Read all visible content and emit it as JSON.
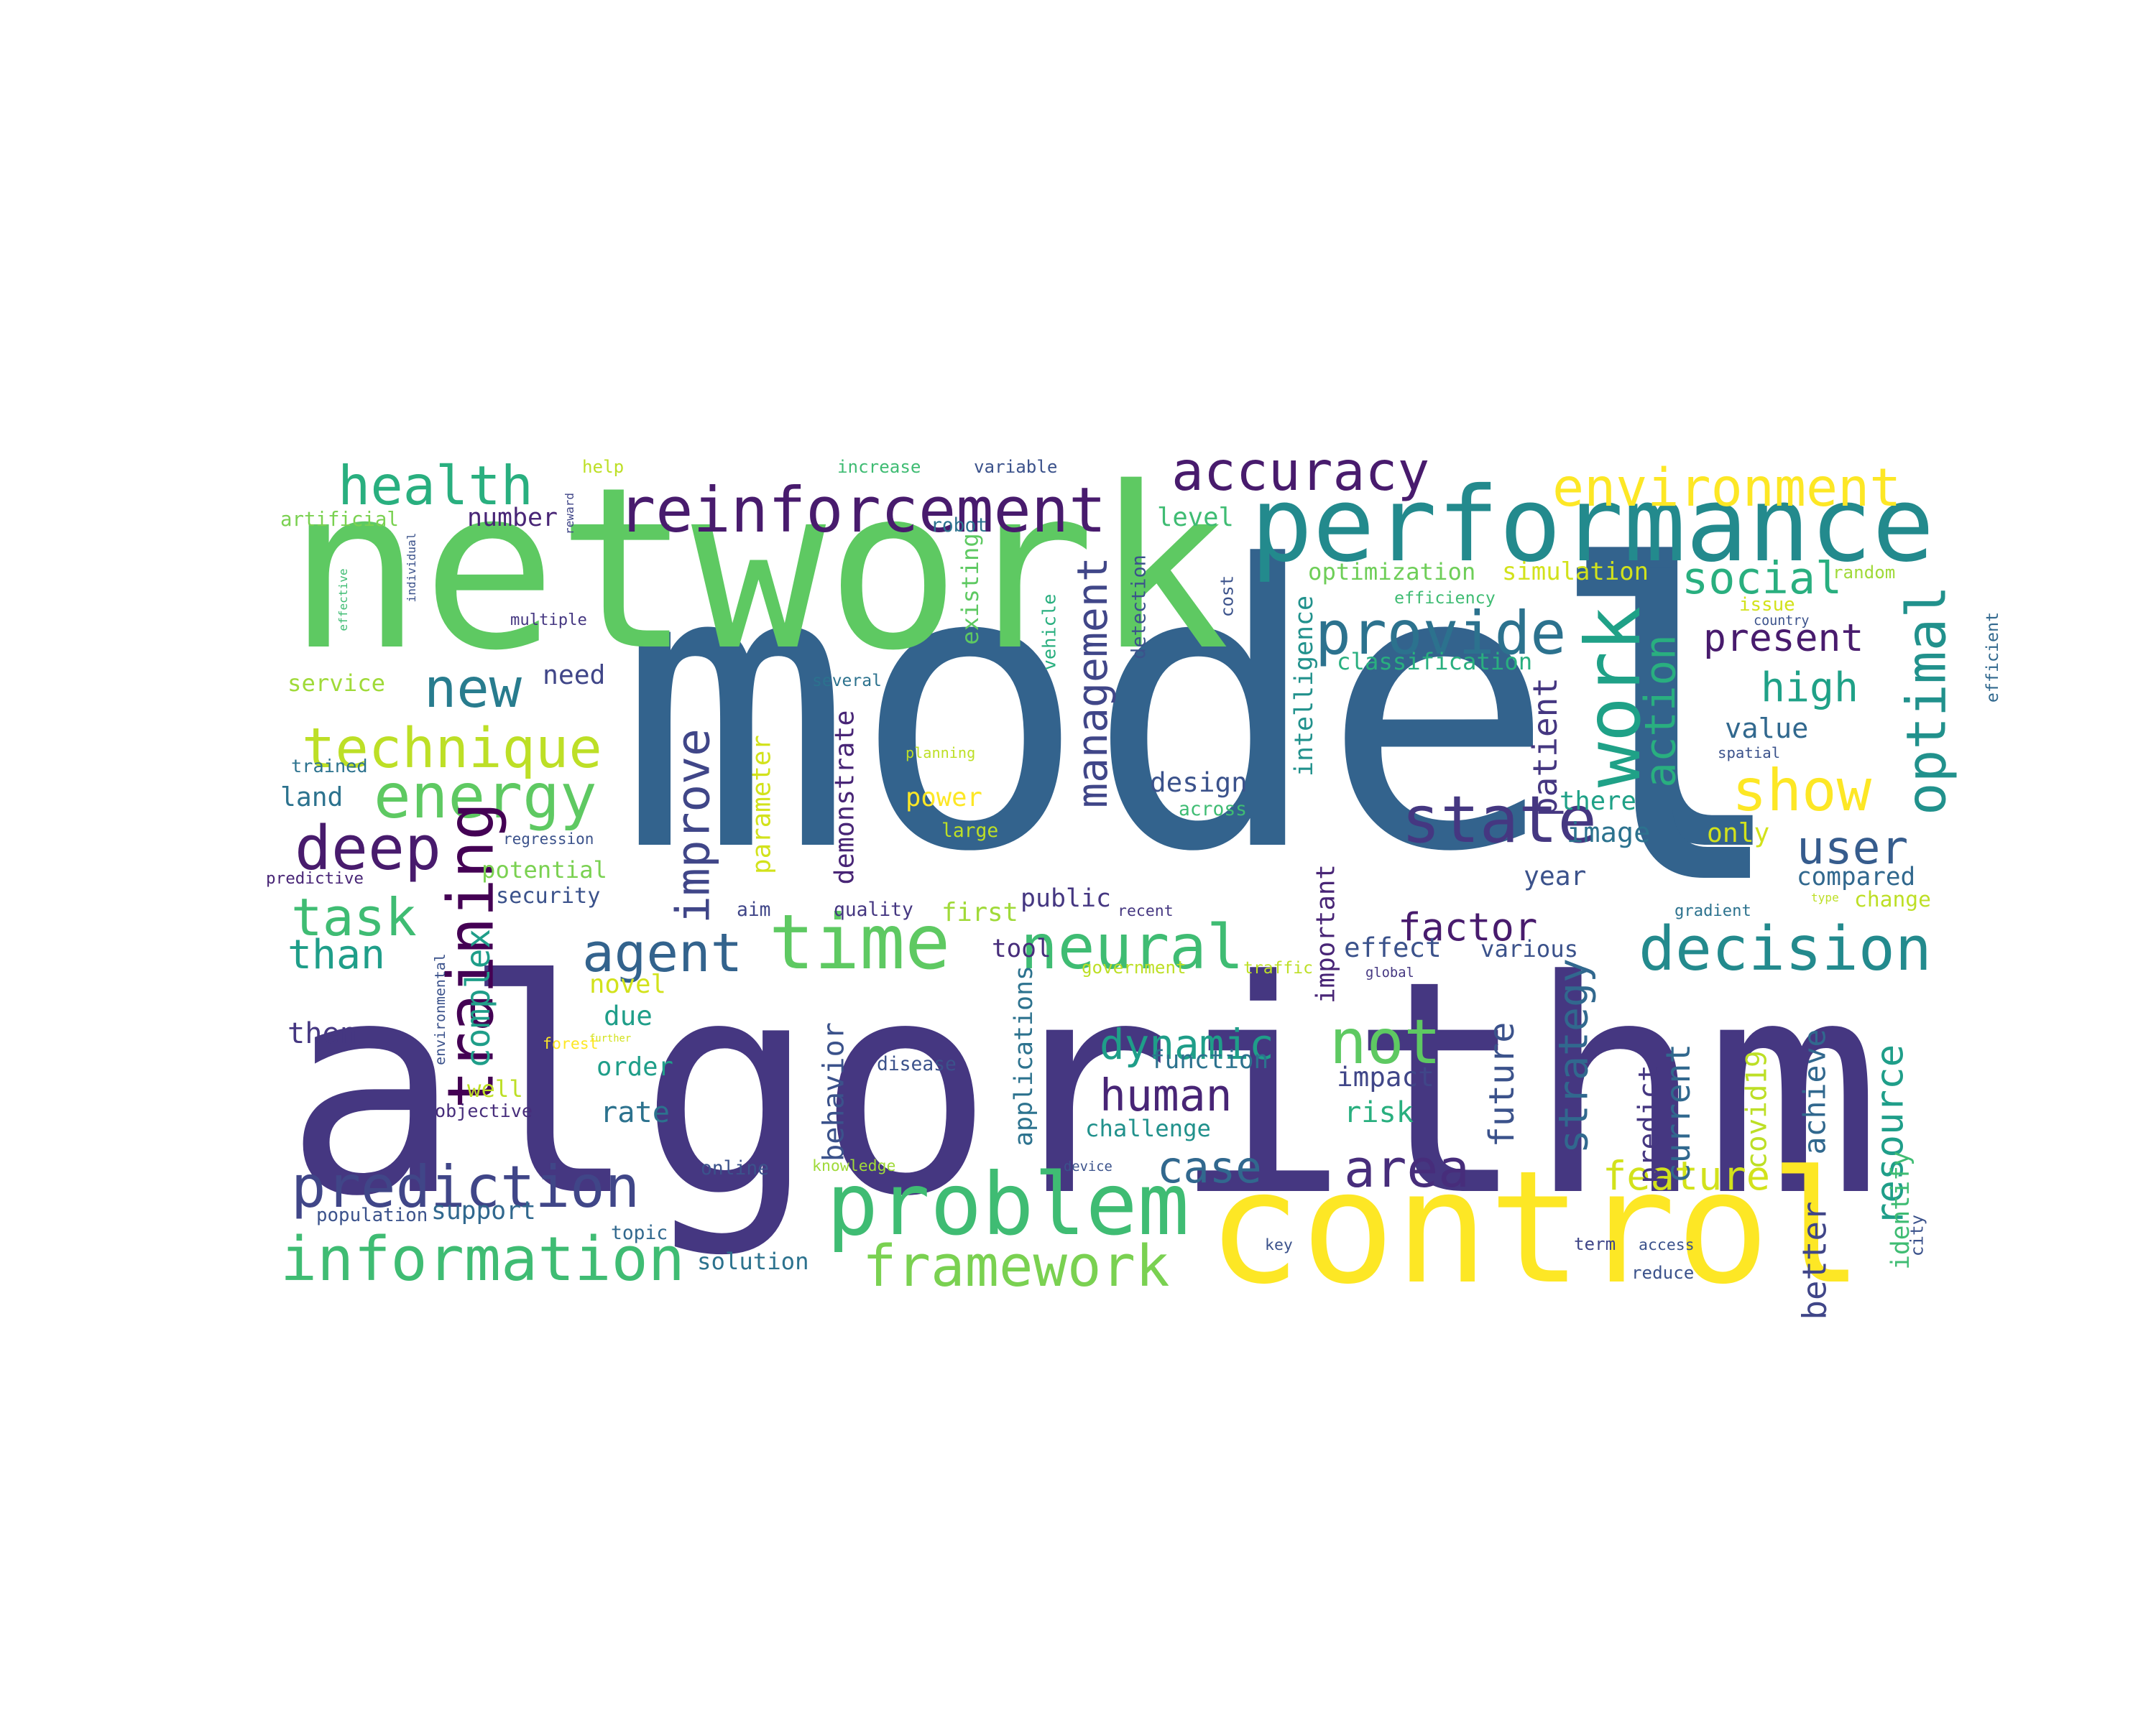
{
  "words": [
    {
      "text": "model",
      "color": "#33638d",
      "vertical": false
    },
    {
      "text": "algorithm",
      "color": "#453781",
      "vertical": false
    },
    {
      "text": "network",
      "color": "#5ec962",
      "vertical": false
    },
    {
      "text": "control",
      "color": "#fde725",
      "vertical": false
    },
    {
      "text": "l",
      "color": "#33638d",
      "vertical": false
    },
    {
      "text": "performance",
      "color": "#238a8d",
      "vertical": false
    },
    {
      "text": "problem",
      "color": "#3fbc73",
      "vertical": false
    },
    {
      "text": "reinforcement",
      "color": "#481b6d",
      "vertical": false
    },
    {
      "text": "information",
      "color": "#3fbc73",
      "vertical": false
    },
    {
      "text": "prediction",
      "color": "#404688",
      "vertical": false
    },
    {
      "text": "decision",
      "color": "#238a8d",
      "vertical": false
    },
    {
      "text": "framework",
      "color": "#7ad151",
      "vertical": false
    },
    {
      "text": "energy",
      "color": "#5ec962",
      "vertical": false
    },
    {
      "text": "time",
      "color": "#5ec962",
      "vertical": false
    },
    {
      "text": "technique",
      "color": "#bddf26",
      "vertical": false
    },
    {
      "text": "neural",
      "color": "#3fbc73",
      "vertical": false
    },
    {
      "text": "provide",
      "color": "#2c728e",
      "vertical": false
    },
    {
      "text": "environment",
      "color": "#fde725",
      "vertical": false
    },
    {
      "text": "accuracy",
      "color": "#481b6d",
      "vertical": false
    },
    {
      "text": "health",
      "color": "#29af7f",
      "vertical": false
    },
    {
      "text": "deep",
      "color": "#481b6d",
      "vertical": false
    },
    {
      "text": "new",
      "color": "#287c8e",
      "vertical": false
    },
    {
      "text": "show",
      "color": "#fde725",
      "vertical": false
    },
    {
      "text": "agent",
      "color": "#33638d",
      "vertical": false
    },
    {
      "text": "not",
      "color": "#5ec962",
      "vertical": false
    },
    {
      "text": "state",
      "color": "#453781",
      "vertical": false
    },
    {
      "text": "task",
      "color": "#3fbc73",
      "vertical": false
    },
    {
      "text": "area",
      "color": "#472d7b",
      "vertical": false
    },
    {
      "text": "user",
      "color": "#365c8d",
      "vertical": false
    },
    {
      "text": "present",
      "color": "#481b6d",
      "vertical": false
    },
    {
      "text": "social",
      "color": "#29af7f",
      "vertical": false
    },
    {
      "text": "high",
      "color": "#1fa187",
      "vertical": false
    },
    {
      "text": "factor",
      "color": "#481b6d",
      "vertical": false
    },
    {
      "text": "dynamic",
      "color": "#1f9e89",
      "vertical": false
    },
    {
      "text": "human",
      "color": "#482576",
      "vertical": false
    },
    {
      "text": "feature",
      "color": "#d2e21b",
      "vertical": false
    },
    {
      "text": "case",
      "color": "#31688e",
      "vertical": false
    },
    {
      "text": "than",
      "color": "#1f9e89",
      "vertical": false
    },
    {
      "text": "training",
      "color": "#440154",
      "vertical": true
    },
    {
      "text": "work",
      "color": "#1fa187",
      "vertical": true
    },
    {
      "text": "optimal",
      "color": "#21918c",
      "vertical": true
    },
    {
      "text": "action",
      "color": "#29af7f",
      "vertical": true
    },
    {
      "text": "resource",
      "color": "#1f9e89",
      "vertical": true
    },
    {
      "text": "strategy",
      "color": "#31688e",
      "vertical": true
    },
    {
      "text": "improve",
      "color": "#404688",
      "vertical": true
    },
    {
      "text": "management",
      "color": "#404688",
      "vertical": true
    },
    {
      "text": "optimization",
      "color": "#6ece58",
      "vertical": false
    },
    {
      "text": "simulation",
      "color": "#d2e21b",
      "vertical": false
    },
    {
      "text": "classification",
      "color": "#29af7f",
      "vertical": false
    },
    {
      "text": "artificial",
      "color": "#7ad151",
      "vertical": false
    },
    {
      "text": "number",
      "color": "#482576",
      "vertical": false
    },
    {
      "text": "level",
      "color": "#3fbc73",
      "vertical": false
    },
    {
      "text": "service",
      "color": "#a0da39",
      "vertical": false
    },
    {
      "text": "need",
      "color": "#404688",
      "vertical": false
    },
    {
      "text": "land",
      "color": "#2c728e",
      "vertical": false
    },
    {
      "text": "potential",
      "color": "#7ad151",
      "vertical": false
    },
    {
      "text": "security",
      "color": "#3b528b",
      "vertical": false
    },
    {
      "text": "design",
      "color": "#3b528b",
      "vertical": false
    },
    {
      "text": "power",
      "color": "#fde725",
      "vertical": false
    },
    {
      "text": "public",
      "color": "#453781",
      "vertical": false
    },
    {
      "text": "first",
      "color": "#a0da39",
      "vertical": false
    },
    {
      "text": "tool",
      "color": "#472d7b",
      "vertical": false
    },
    {
      "text": "effect",
      "color": "#3b528b",
      "vertical": false
    },
    {
      "text": "various",
      "color": "#3b528b",
      "vertical": false
    },
    {
      "text": "compared",
      "color": "#31688e",
      "vertical": false
    },
    {
      "text": "change",
      "color": "#bddf26",
      "vertical": false
    },
    {
      "text": "value",
      "color": "#31688e",
      "vertical": false
    },
    {
      "text": "image",
      "color": "#2c728e",
      "vertical": false
    },
    {
      "text": "there",
      "color": "#1fa187",
      "vertical": false
    },
    {
      "text": "only",
      "color": "#d2e21b",
      "vertical": false
    },
    {
      "text": "year",
      "color": "#3b528b",
      "vertical": false
    },
    {
      "text": "novel",
      "color": "#d2e21b",
      "vertical": false
    },
    {
      "text": "due",
      "color": "#1f9e89",
      "vertical": false
    },
    {
      "text": "then",
      "color": "#453781",
      "vertical": false
    },
    {
      "text": "order",
      "color": "#1f9e89",
      "vertical": false
    },
    {
      "text": "well",
      "color": "#bddf26",
      "vertical": false
    },
    {
      "text": "rate",
      "color": "#2c728e",
      "vertical": false
    },
    {
      "text": "function",
      "color": "#2c728e",
      "vertical": false
    },
    {
      "text": "impact",
      "color": "#404688",
      "vertical": false
    },
    {
      "text": "risk",
      "color": "#29af7f",
      "vertical": false
    },
    {
      "text": "challenge",
      "color": "#21918c",
      "vertical": false
    },
    {
      "text": "support",
      "color": "#31688e",
      "vertical": false
    },
    {
      "text": "solution",
      "color": "#2c728e",
      "vertical": false
    },
    {
      "text": "existing",
      "color": "#5ec962",
      "vertical": true
    },
    {
      "text": "vehicle",
      "color": "#29af7f",
      "vertical": true
    },
    {
      "text": "detection",
      "color": "#3b528b",
      "vertical": true
    },
    {
      "text": "intelligence",
      "color": "#21918c",
      "vertical": true
    },
    {
      "text": "important",
      "color": "#482576",
      "vertical": true
    },
    {
      "text": "demonstrate",
      "color": "#482576",
      "vertical": true
    },
    {
      "text": "parameter",
      "color": "#d2e21b",
      "vertical": true
    },
    {
      "text": "applications",
      "color": "#2c728e",
      "vertical": true
    },
    {
      "text": "behavior",
      "color": "#3b528b",
      "vertical": true
    },
    {
      "text": "complex",
      "color": "#1f9e89",
      "vertical": true
    },
    {
      "text": "future",
      "color": "#3b528b",
      "vertical": true
    },
    {
      "text": "predict",
      "color": "#453781",
      "vertical": true
    },
    {
      "text": "current",
      "color": "#31688e",
      "vertical": true
    },
    {
      "text": "covid19",
      "color": "#bddf26",
      "vertical": true
    },
    {
      "text": "achieve",
      "color": "#31688e",
      "vertical": true
    },
    {
      "text": "patient",
      "color": "#453781",
      "vertical": true
    },
    {
      "text": "identify",
      "color": "#3fbc73",
      "vertical": true
    },
    {
      "text": "better",
      "color": "#404688",
      "vertical": true
    },
    {
      "text": "help",
      "color": "#bddf26",
      "vertical": false
    },
    {
      "text": "increase",
      "color": "#3fbc73",
      "vertical": false
    },
    {
      "text": "variable",
      "color": "#3b528b",
      "vertical": false
    },
    {
      "text": "robot",
      "color": "#2c728e",
      "vertical": false
    },
    {
      "text": "efficiency",
      "color": "#3fbc73",
      "vertical": false
    },
    {
      "text": "multiple",
      "color": "#453781",
      "vertical": false
    },
    {
      "text": "several",
      "color": "#2c728e",
      "vertical": false
    },
    {
      "text": "planning",
      "color": "#bddf26",
      "vertical": false
    },
    {
      "text": "across",
      "color": "#3fbc73",
      "vertical": false
    },
    {
      "text": "large",
      "color": "#bddf26",
      "vertical": false
    },
    {
      "text": "quality",
      "color": "#453781",
      "vertical": false
    },
    {
      "text": "aim",
      "color": "#404688",
      "vertical": false
    },
    {
      "text": "recent",
      "color": "#453781",
      "vertical": false
    },
    {
      "text": "gradient",
      "color": "#2c728e",
      "vertical": false
    },
    {
      "text": "global",
      "color": "#453781",
      "vertical": false
    },
    {
      "text": "government",
      "color": "#bddf26",
      "vertical": false
    },
    {
      "text": "traffic",
      "color": "#bddf26",
      "vertical": false
    },
    {
      "text": "disease",
      "color": "#3b528b",
      "vertical": false
    },
    {
      "text": "further",
      "color": "#d2e21b",
      "vertical": false
    },
    {
      "text": "objective",
      "color": "#472d7b",
      "vertical": false
    },
    {
      "text": "online",
      "color": "#3b528b",
      "vertical": false
    },
    {
      "text": "knowledge",
      "color": "#a0da39",
      "vertical": false
    },
    {
      "text": "device",
      "color": "#3b528b",
      "vertical": false
    },
    {
      "text": "population",
      "color": "#3b528b",
      "vertical": false
    },
    {
      "text": "key",
      "color": "#3b528b",
      "vertical": false
    },
    {
      "text": "term",
      "color": "#404688",
      "vertical": false
    },
    {
      "text": "access",
      "color": "#3b528b",
      "vertical": false
    },
    {
      "text": "reduce",
      "color": "#3b528b",
      "vertical": false
    },
    {
      "text": "trained",
      "color": "#2c728e",
      "vertical": false
    },
    {
      "text": "predictive",
      "color": "#482576",
      "vertical": false
    },
    {
      "text": "regression",
      "color": "#3b528b",
      "vertical": false
    },
    {
      "text": "spatial",
      "color": "#3b528b",
      "vertical": false
    },
    {
      "text": "issue",
      "color": "#d2e21b",
      "vertical": false
    },
    {
      "text": "random",
      "color": "#a0da39",
      "vertical": false
    },
    {
      "text": "forest",
      "color": "#fde725",
      "vertical": false
    },
    {
      "text": "topic",
      "color": "#31688e",
      "vertical": false
    },
    {
      "text": "type",
      "color": "#bddf26",
      "vertical": false
    },
    {
      "text": "country",
      "color": "#3b528b",
      "vertical": false
    },
    {
      "text": "reward",
      "color": "#404688",
      "vertical": true
    },
    {
      "text": "individual",
      "color": "#3b528b",
      "vertical": true
    },
    {
      "text": "effective",
      "color": "#3fbc73",
      "vertical": true
    },
    {
      "text": "cost",
      "color": "#3b528b",
      "vertical": true
    },
    {
      "text": "environmental",
      "color": "#3b528b",
      "vertical": true
    },
    {
      "text": "efficient",
      "color": "#31688e",
      "vertical": true
    },
    {
      "text": "city",
      "color": "#3b528b",
      "vertical": true
    }
  ]
}
